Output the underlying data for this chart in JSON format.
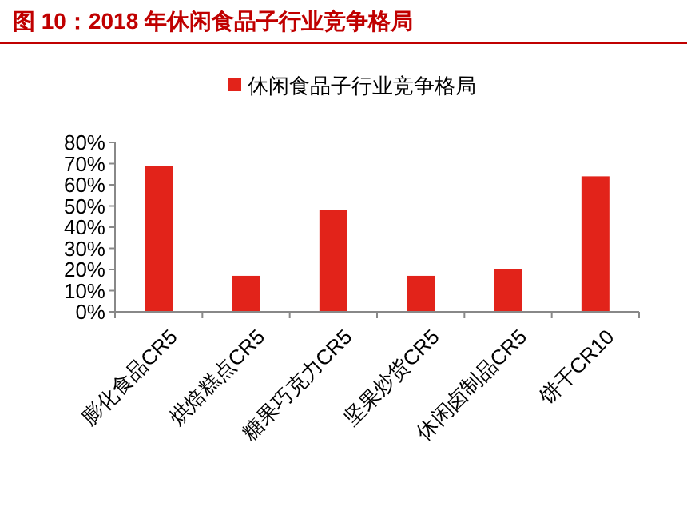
{
  "chart_data": {
    "type": "bar",
    "title": "图 10：2018 年休闲食品子行业竞争格局",
    "categories": [
      "膨化食品CR5",
      "烘焙糕点CR5",
      "糖果巧克力CR5",
      "坚果炒货CR5",
      "休闲卤制品CR5",
      "饼干CR10"
    ],
    "series": [
      {
        "name": "休闲食品子行业竞争格局",
        "color": "#e2231a",
        "values": [
          69,
          17,
          48,
          17,
          20,
          64
        ]
      }
    ],
    "ylim": [
      0,
      80
    ],
    "yticks": [
      {
        "value": 0,
        "label": "0%"
      },
      {
        "value": 10,
        "label": "10%"
      },
      {
        "value": 20,
        "label": "20%"
      },
      {
        "value": 30,
        "label": "30%"
      },
      {
        "value": 40,
        "label": "40%"
      },
      {
        "value": 50,
        "label": "50%"
      },
      {
        "value": 60,
        "label": "60%"
      },
      {
        "value": 70,
        "label": "70%"
      },
      {
        "value": 80,
        "label": "80%"
      }
    ],
    "grid": false,
    "legend": "top"
  }
}
